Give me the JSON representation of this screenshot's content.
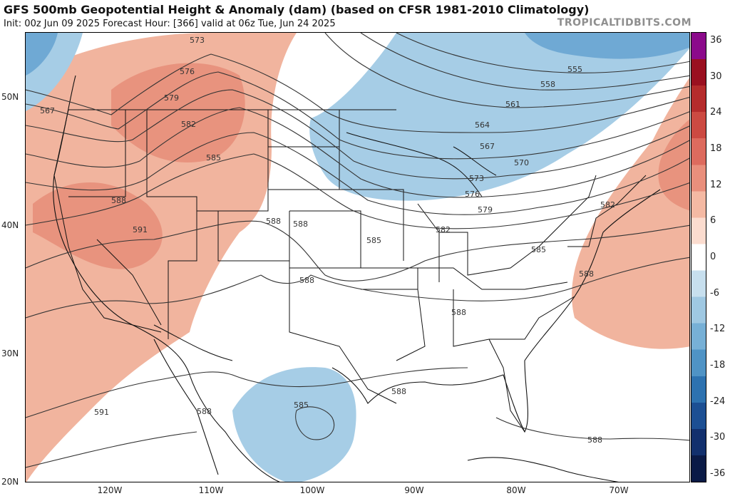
{
  "header": {
    "title": "GFS 500mb Geopotential Height & Anomaly (dam) (based on CFSR 1981-2010 Climatology)",
    "subtitle": "Init: 00z Jun 09 2025   Forecast Hour: [366]   valid at 06z Tue, Jun 24 2025",
    "source": "TROPICALTIDBITS.COM"
  },
  "axes": {
    "latitudes": [
      "50N",
      "40N",
      "30N",
      "20N"
    ],
    "longitudes": [
      "120W",
      "110W",
      "100W",
      "90W",
      "80W",
      "70W"
    ]
  },
  "contour_labels": [
    "555",
    "558",
    "561",
    "564",
    "567",
    "567",
    "570",
    "573",
    "573",
    "576",
    "576",
    "579",
    "579",
    "582",
    "582",
    "582",
    "585",
    "585",
    "585",
    "585",
    "588",
    "588",
    "588",
    "588",
    "588",
    "588",
    "588",
    "588",
    "588",
    "591",
    "591"
  ],
  "colorbar": {
    "ticks": [
      "36",
      "30",
      "24",
      "18",
      "12",
      "6",
      "0",
      "-6",
      "-12",
      "-18",
      "-24",
      "-30",
      "-36"
    ],
    "colors": [
      "#8b0a8b",
      "#9a1020",
      "#b52c2c",
      "#cc4a42",
      "#dd6b5e",
      "#e98f7c",
      "#f4b9a3",
      "#fbdccf",
      "#ffffff",
      "#c7dfee",
      "#9fc8e2",
      "#77b0d6",
      "#4f93c5",
      "#2d72b0",
      "#1c4f93",
      "#12306d",
      "#0a1a46"
    ]
  },
  "legend_colors": {
    "positive_anomaly": "#f1b49e",
    "strong_positive_anomaly": "#e8937e",
    "negative_anomaly": "#a6cde6",
    "strong_negative_anomaly": "#6fa9d4"
  }
}
